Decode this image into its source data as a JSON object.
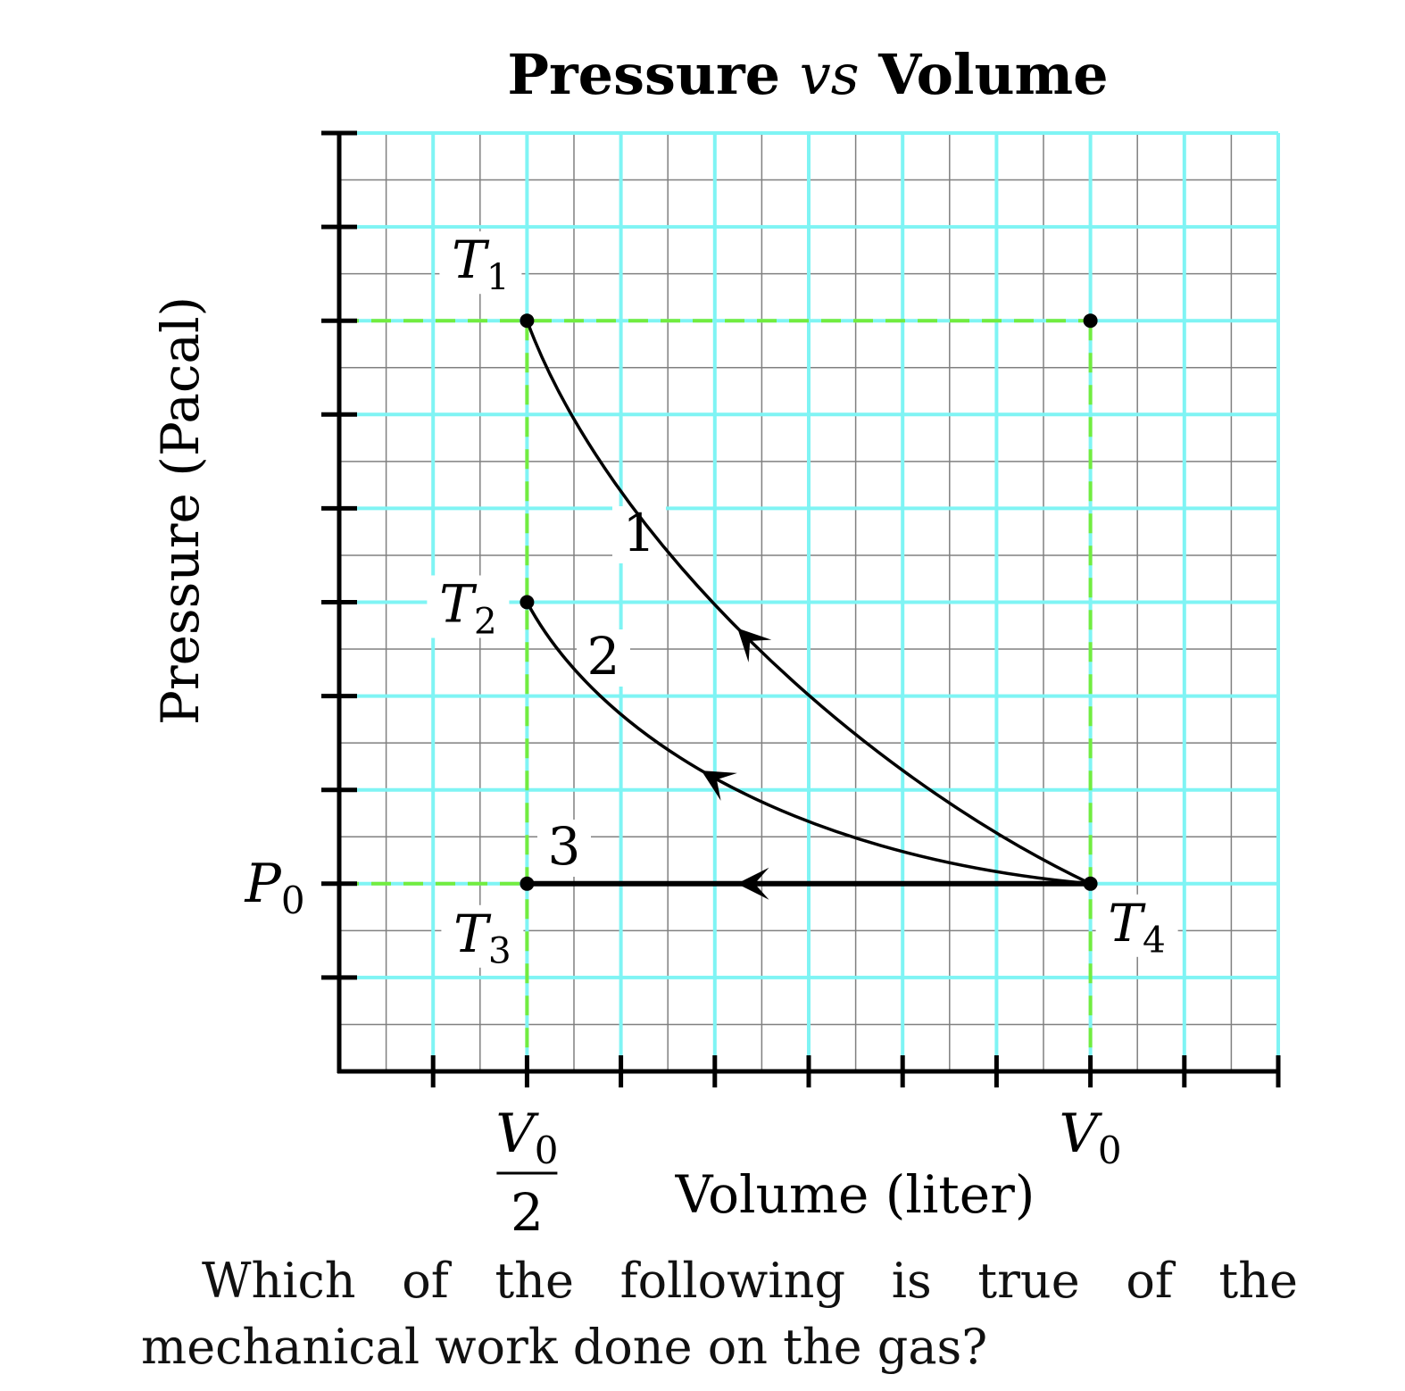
{
  "chart_data": {
    "type": "line",
    "title": {
      "prefix": "Pressure",
      "middle": "vs",
      "suffix": "Volume"
    },
    "xlabel": "Volume (liter)",
    "ylabel": "Pressure (Pacal)",
    "xlim": [
      0,
      1.0
    ],
    "ylim": [
      -0.4,
      1.6
    ],
    "grid": true,
    "x_ticks": [
      0.1,
      0.2,
      0.3,
      0.4,
      0.5,
      0.6,
      0.7,
      0.8,
      0.9,
      1.0
    ],
    "y_ticks": [
      -0.2,
      0.0,
      0.2,
      0.4,
      0.6,
      0.8,
      1.0,
      1.2,
      1.4,
      1.6
    ],
    "x_tick_labels": [
      {
        "x": 0.2,
        "num": "V",
        "sub": "0",
        "den": "2"
      },
      {
        "x": 0.8,
        "num": "V",
        "sub": "0"
      }
    ],
    "y_tick_labels": [
      {
        "y": 0.0,
        "main": "P",
        "sub": "0"
      }
    ],
    "points": [
      {
        "id": "T1",
        "x": 0.2,
        "y": 1.2,
        "main": "T",
        "sub": "1"
      },
      {
        "id": "T2",
        "x": 0.2,
        "y": 0.6,
        "main": "T",
        "sub": "2"
      },
      {
        "id": "T3",
        "x": 0.2,
        "y": 0.0,
        "main": "T",
        "sub": "3"
      },
      {
        "id": "T4",
        "x": 0.8,
        "y": 0.0,
        "main": "T",
        "sub": "4"
      },
      {
        "id": "corner",
        "x": 0.8,
        "y": 1.2
      }
    ],
    "paths": [
      {
        "label": "1",
        "from": "T4",
        "to": "T1",
        "shape": "curve"
      },
      {
        "label": "2",
        "from": "T4",
        "to": "T2",
        "shape": "curve"
      },
      {
        "label": "3",
        "from": "T4",
        "to": "T3",
        "shape": "line"
      }
    ],
    "colors": {
      "major_grid": "#7ff4f4",
      "minor_grid": "#808080",
      "guide_dashed": "#72ec3f",
      "axis": "#000000"
    }
  },
  "question": "Which of the following is true of the mechanical work done on the gas?"
}
